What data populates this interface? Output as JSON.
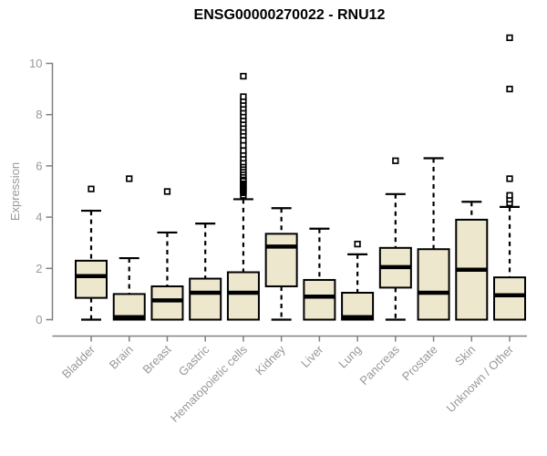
{
  "title": "ENSG00000270022 - RNU12",
  "colors": {
    "background": "#FFFFFF",
    "box_fill": "#EDE8CD",
    "box_stroke": "#000000",
    "median": "#000000",
    "whisker": "#000000",
    "axis_line": "#808080",
    "tick_text": "#989898",
    "title_text": "#000000"
  },
  "chart_data": {
    "type": "boxplot",
    "title": "ENSG00000270022 - RNU12",
    "xlabel": "",
    "ylabel": "Expression",
    "ylim": [
      0,
      10
    ],
    "y_ticks": [
      0,
      2,
      4,
      6,
      8,
      10
    ],
    "grid": false,
    "legend": false,
    "categories": [
      "Bladder",
      "Brain",
      "Breast",
      "Gastric",
      "Hematopoietic cells",
      "Kidney",
      "Liver",
      "Lung",
      "Pancreas",
      "Prostate",
      "Skin",
      "Unknown / Other"
    ],
    "series": [
      {
        "name": "Bladder",
        "whisker_low": 0,
        "q1": 0.85,
        "median": 1.7,
        "q3": 2.3,
        "whisker_high": 4.25,
        "outliers": [
          5.1
        ]
      },
      {
        "name": "Brain",
        "whisker_low": 0,
        "q1": 0,
        "median": 0.1,
        "q3": 1.0,
        "whisker_high": 2.4,
        "outliers": [
          5.5
        ]
      },
      {
        "name": "Breast",
        "whisker_low": 0,
        "q1": 0,
        "median": 0.75,
        "q3": 1.3,
        "whisker_high": 3.4,
        "outliers": [
          5.0
        ]
      },
      {
        "name": "Gastric",
        "whisker_low": 0,
        "q1": 0,
        "median": 1.05,
        "q3": 1.6,
        "whisker_high": 3.75,
        "outliers": []
      },
      {
        "name": "Hematopoietic cells",
        "whisker_low": 0,
        "q1": 0,
        "median": 1.05,
        "q3": 1.85,
        "whisker_high": 4.7,
        "outliers": [
          4.85,
          4.95,
          5.0,
          5.05,
          5.1,
          5.15,
          5.2,
          5.25,
          5.3,
          5.35,
          5.4,
          5.45,
          5.5,
          5.6,
          5.65,
          5.75,
          5.85,
          5.95,
          6.05,
          6.15,
          6.3,
          6.45,
          6.6,
          6.8,
          7.0,
          7.2,
          7.35,
          7.5,
          7.65,
          7.8,
          7.95,
          8.1,
          8.25,
          8.4,
          8.55,
          8.7,
          9.5
        ]
      },
      {
        "name": "Kidney",
        "whisker_low": 0,
        "q1": 1.3,
        "median": 2.85,
        "q3": 3.35,
        "whisker_high": 4.35,
        "outliers": []
      },
      {
        "name": "Liver",
        "whisker_low": 0,
        "q1": 0,
        "median": 0.9,
        "q3": 1.55,
        "whisker_high": 3.55,
        "outliers": []
      },
      {
        "name": "Lung",
        "whisker_low": 0,
        "q1": 0,
        "median": 0.1,
        "q3": 1.05,
        "whisker_high": 2.55,
        "outliers": [
          2.95
        ]
      },
      {
        "name": "Pancreas",
        "whisker_low": 0,
        "q1": 1.25,
        "median": 2.05,
        "q3": 2.8,
        "whisker_high": 4.9,
        "outliers": [
          6.2
        ]
      },
      {
        "name": "Prostate",
        "whisker_low": 0,
        "q1": 0,
        "median": 1.05,
        "q3": 2.75,
        "whisker_high": 6.3,
        "outliers": []
      },
      {
        "name": "Skin",
        "whisker_low": 0,
        "q1": 0,
        "median": 1.95,
        "q3": 3.9,
        "whisker_high": 4.6,
        "outliers": []
      },
      {
        "name": "Unknown / Other",
        "whisker_low": 0,
        "q1": 0,
        "median": 0.95,
        "q3": 1.65,
        "whisker_high": 4.4,
        "outliers": [
          4.55,
          4.7,
          4.85,
          5.5,
          9.0,
          11.0
        ]
      }
    ]
  }
}
